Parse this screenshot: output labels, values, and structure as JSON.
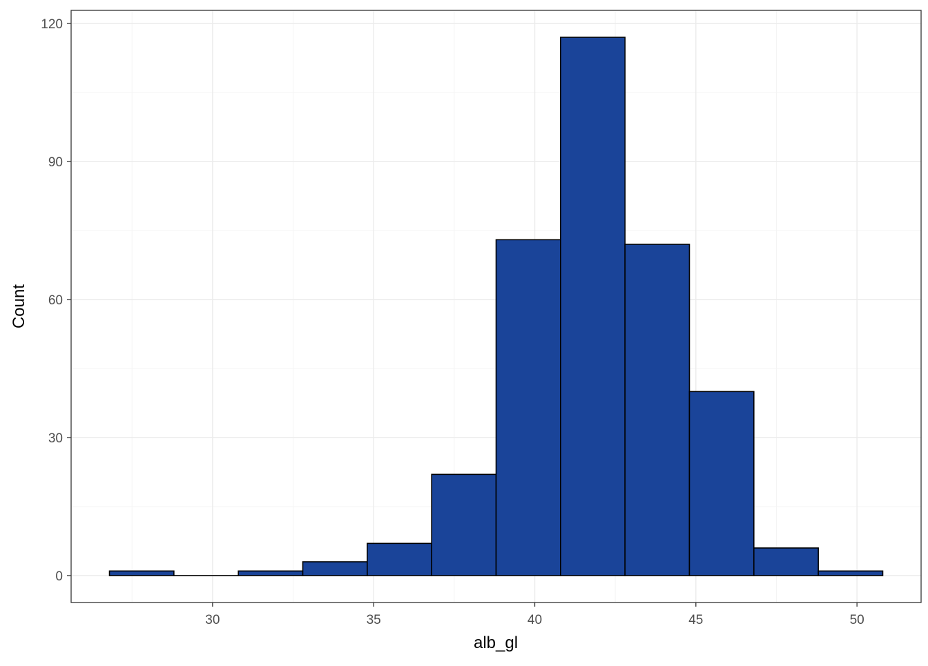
{
  "chart_data": {
    "type": "bar",
    "title": "",
    "xlabel": "alb_gl",
    "ylabel": "Count",
    "bin_width": 2,
    "bins": [
      {
        "x0": 26.8,
        "x1": 28.8,
        "count": 1
      },
      {
        "x0": 28.8,
        "x1": 30.8,
        "count": 0
      },
      {
        "x0": 30.8,
        "x1": 32.8,
        "count": 1
      },
      {
        "x0": 32.8,
        "x1": 34.8,
        "count": 3
      },
      {
        "x0": 34.8,
        "x1": 36.8,
        "count": 7
      },
      {
        "x0": 36.8,
        "x1": 38.8,
        "count": 22
      },
      {
        "x0": 38.8,
        "x1": 40.8,
        "count": 73
      },
      {
        "x0": 40.8,
        "x1": 42.8,
        "count": 117
      },
      {
        "x0": 42.8,
        "x1": 44.8,
        "count": 72
      },
      {
        "x0": 44.8,
        "x1": 46.8,
        "count": 40
      },
      {
        "x0": 46.8,
        "x1": 48.8,
        "count": 6
      },
      {
        "x0": 48.8,
        "x1": 50.8,
        "count": 1
      }
    ],
    "xlim": [
      25.61,
      51.99
    ],
    "ylim": [
      -5.85,
      122.85
    ],
    "x_ticks": [
      30,
      35,
      40,
      45,
      50
    ],
    "x_tick_labels": [
      "30",
      "35",
      "40",
      "45",
      "50"
    ],
    "x_minor_ticks": [
      27.5,
      32.5,
      37.5,
      42.5,
      47.5
    ],
    "y_ticks": [
      0,
      30,
      60,
      90,
      120
    ],
    "y_tick_labels": [
      "0",
      "30",
      "60",
      "90",
      "120"
    ],
    "y_minor_ticks": [
      15,
      45,
      75,
      105
    ],
    "grid": true,
    "legend": "none",
    "colors": {
      "bar_fill": "#1a4499",
      "bar_outline": "#000000",
      "grid_major": "#ebebeb",
      "grid_minor": "#f4f4f4",
      "panel_border": "#333333",
      "tick_label": "#4d4d4d"
    }
  }
}
